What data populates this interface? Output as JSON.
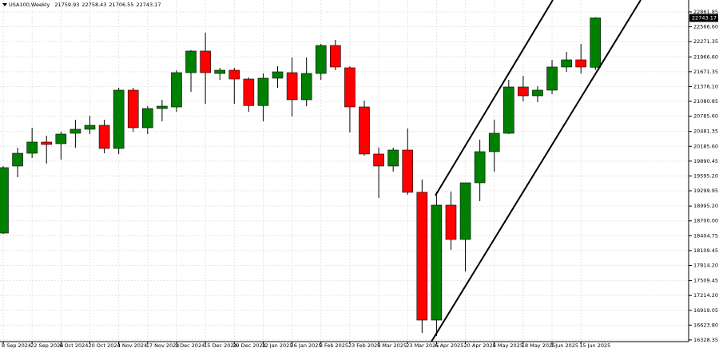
{
  "chart_data": {
    "type": "candlestick",
    "title": "USA100,Weekly",
    "categories": [
      "8 Sep 2024",
      null,
      "22 Sep 2024",
      null,
      "6 Oct 2024",
      null,
      "20 Oct 2024",
      null,
      "3 Nov 2024",
      null,
      "17 Nov 2024",
      null,
      "1 Dec 2024",
      null,
      "15 Dec 2024",
      null,
      "29 Dec 2024",
      null,
      "12 Jan 2025",
      null,
      "26 Jan 2025",
      null,
      "9 Feb 2025",
      null,
      "23 Feb 2025",
      null,
      "9 Mar 2025",
      null,
      "23 Mar 2025",
      null,
      "6 Apr 2025",
      null,
      "20 Apr 2025",
      null,
      "4 May 2025",
      null,
      "18 May 2025",
      null,
      "1 Jun 2025",
      null,
      "15 Jun 2025",
      null
    ],
    "open": [
      18457,
      19793,
      20047,
      20270,
      20238,
      20445,
      20525,
      20604,
      20143,
      21304,
      20556,
      20938,
      20969,
      21653,
      22083,
      21637,
      21701,
      21526,
      20997,
      21542,
      21653,
      21113,
      21637,
      22194,
      21749,
      20970,
      20032,
      19793,
      20111,
      19269,
      16724,
      19014,
      18330,
      19459,
      20079,
      20445,
      21367,
      21192,
      21304,
      21765,
      21908,
      21759.93
    ],
    "high": [
      19790,
      20158,
      20556,
      20397,
      20477,
      20715,
      20795,
      20715,
      21351,
      21351,
      20985,
      21113,
      21701,
      22099,
      22449,
      21749,
      21749,
      21558,
      21638,
      21781,
      21956,
      21956,
      22226,
      22305,
      21781,
      21097,
      20159,
      20159,
      20540,
      19523,
      19284,
      19284,
      19459,
      20318,
      20715,
      21510,
      21590,
      21383,
      21908,
      22067,
      22226,
      22758.43
    ],
    "low": [
      18440,
      19570,
      19952,
      19841,
      19920,
      20159,
      20429,
      20048,
      20032,
      20477,
      20429,
      20684,
      20874,
      21272,
      21033,
      21510,
      21033,
      20874,
      20684,
      21351,
      20779,
      20985,
      21510,
      21701,
      20461,
      20000,
      19157,
      19682,
      19221,
      16470,
      16406,
      18124,
      17694,
      19094,
      19682,
      20429,
      21081,
      21065,
      21224,
      21669,
      21637,
      21706.55
    ],
    "close": [
      19761,
      20047,
      20270,
      20222,
      20429,
      20525,
      20604,
      20143,
      21304,
      20556,
      20938,
      20985,
      21653,
      22083,
      21653,
      21701,
      21526,
      20997,
      21542,
      21669,
      21113,
      21637,
      22194,
      21765,
      20970,
      20032,
      19793,
      20111,
      19269,
      16724,
      19014,
      18330,
      19459,
      20079,
      20445,
      21367,
      21192,
      21304,
      21765,
      21908,
      21765,
      22743.17
    ],
    "up_color": "#008000",
    "down_color": "#ff0000",
    "wick_color": "#000000",
    "ylim": [
      16295,
      23100
    ],
    "yticks": [
      22861.85,
      {
        "value": 22566.6,
        "label": "22566.60"
      },
      22271.35,
      {
        "value": 21966.6,
        "label": "21966.60"
      },
      21671.35,
      {
        "value": 21376.1,
        "label": "21376.10"
      },
      21080.85,
      {
        "value": 20785.6,
        "label": "20785.60"
      },
      20481.35,
      {
        "value": 20185.6,
        "label": "20185.60"
      },
      19890.45,
      {
        "value": 19595.2,
        "label": "19595.20"
      },
      19299.95,
      {
        "value": 18995.2,
        "label": "18995.20"
      },
      {
        "value": 18700,
        "label": "18700.00"
      },
      18404.75,
      18109.45,
      {
        "value": 17814.2,
        "label": "17814.20"
      },
      17509.45,
      {
        "value": 17214.2,
        "label": "17214.20"
      },
      16919.05,
      {
        "value": 16623.8,
        "label": "16623.80"
      },
      16328.35
    ],
    "grid": true
  }
}
